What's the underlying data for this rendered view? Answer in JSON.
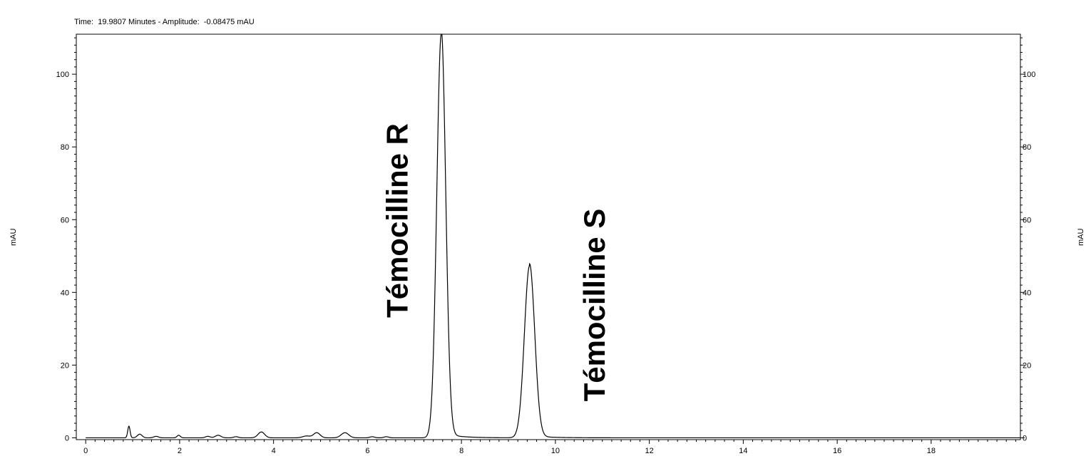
{
  "status": {
    "text": "Time:  19.9807 Minutes - Amplitude:  -0.08475 mAU"
  },
  "chart_data": {
    "type": "line",
    "title": "",
    "xlabel": "",
    "ylabel": "mAU",
    "ylabel_right": "mAU",
    "xlim": [
      -0.2,
      19.9
    ],
    "ylim": [
      -0.5,
      111
    ],
    "x_ticks": [
      0,
      2,
      4,
      6,
      8,
      10,
      12,
      14,
      16,
      18
    ],
    "y_ticks": [
      0,
      20,
      40,
      60,
      80,
      100
    ],
    "grid": false,
    "line_color": "#000000",
    "baseline_noise": [
      {
        "x": 0.92,
        "height": 3.2,
        "width": 0.025
      },
      {
        "x": 1.15,
        "height": 1.0,
        "width": 0.05
      },
      {
        "x": 1.5,
        "height": 0.4,
        "width": 0.05
      },
      {
        "x": 1.98,
        "height": 0.7,
        "width": 0.035
      },
      {
        "x": 2.6,
        "height": 0.4,
        "width": 0.05
      },
      {
        "x": 2.82,
        "height": 0.7,
        "width": 0.06
      },
      {
        "x": 3.2,
        "height": 0.3,
        "width": 0.05
      },
      {
        "x": 3.74,
        "height": 1.6,
        "width": 0.07
      },
      {
        "x": 4.7,
        "height": 0.5,
        "width": 0.08
      },
      {
        "x": 4.92,
        "height": 1.4,
        "width": 0.07
      },
      {
        "x": 5.52,
        "height": 1.4,
        "width": 0.08
      },
      {
        "x": 6.1,
        "height": 0.3,
        "width": 0.05
      },
      {
        "x": 6.4,
        "height": 0.3,
        "width": 0.05
      }
    ],
    "series": [
      {
        "peaks": [
          {
            "x": 7.57,
            "height": 111.0,
            "width": 0.095
          },
          {
            "x": 9.45,
            "height": 47.3,
            "width": 0.11
          }
        ]
      }
    ],
    "annotations": [
      {
        "text": "Témocilline R",
        "x": 6.85,
        "y": 33
      },
      {
        "text": "Témocilline S",
        "x": 11.05,
        "y": 10
      }
    ]
  }
}
